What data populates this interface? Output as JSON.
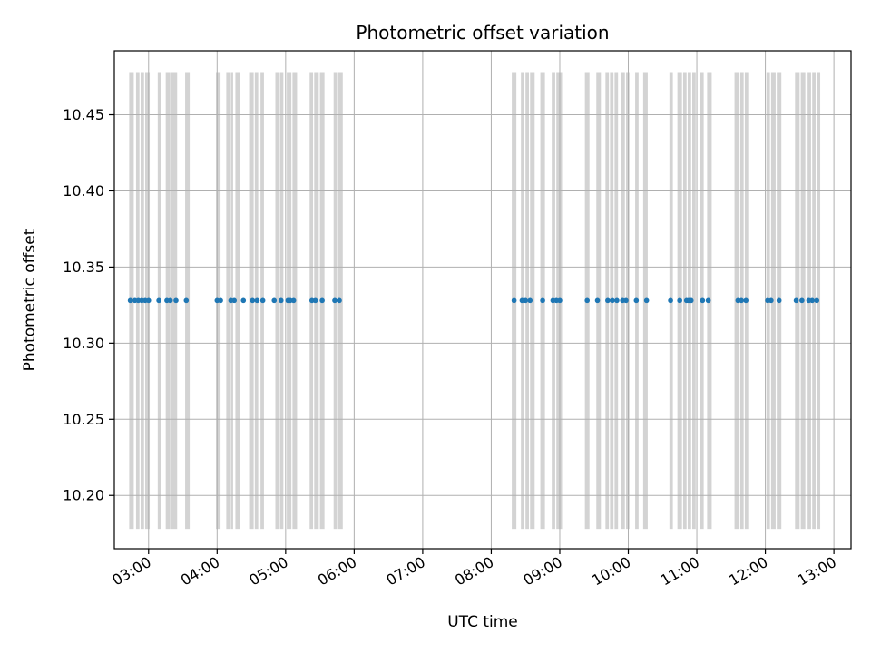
{
  "chart_data": {
    "type": "scatter",
    "title": "Photometric offset variation",
    "xlabel": "UTC time",
    "ylabel": "Photometric offset",
    "grid": true,
    "xlim": [
      "02:30",
      "13:15"
    ],
    "ylim": [
      10.165,
      10.492
    ],
    "x_ticks": [
      "03:00",
      "04:00",
      "05:00",
      "06:00",
      "07:00",
      "08:00",
      "09:00",
      "10:00",
      "11:00",
      "12:00",
      "13:00"
    ],
    "y_ticks": [
      10.2,
      10.25,
      10.3,
      10.35,
      10.4,
      10.45
    ],
    "y_tick_labels": [
      "10.20",
      "10.25",
      "10.30",
      "10.35",
      "10.40",
      "10.45"
    ],
    "band_range": [
      10.178,
      10.478
    ],
    "point_color": "#1f77b4",
    "band_color": "#d3d3d3",
    "points": {
      "y": 10.328,
      "x": [
        "02:44",
        "02:48",
        "02:51",
        "02:54",
        "02:57",
        "03:00",
        "03:09",
        "03:16",
        "03:19",
        "03:24",
        "03:33",
        "04:00",
        "04:03",
        "04:12",
        "04:15",
        "04:23",
        "04:31",
        "04:35",
        "04:40",
        "04:50",
        "04:56",
        "05:02",
        "05:04",
        "05:07",
        "05:23",
        "05:26",
        "05:32",
        "05:43",
        "05:47",
        "08:20",
        "08:27",
        "08:30",
        "08:34",
        "08:45",
        "08:54",
        "08:57",
        "09:00",
        "09:24",
        "09:33",
        "09:42",
        "09:46",
        "09:50",
        "09:55",
        "09:58",
        "10:07",
        "10:16",
        "10:37",
        "10:45",
        "10:51",
        "10:53",
        "10:55",
        "11:05",
        "11:10",
        "11:36",
        "11:39",
        "11:43",
        "12:02",
        "12:05",
        "12:12",
        "12:27",
        "12:32",
        "12:38",
        "12:41",
        "12:45"
      ]
    },
    "bands": [
      [
        "02:43",
        "02:47"
      ],
      [
        "02:49",
        "02:52"
      ],
      [
        "02:53",
        "02:56"
      ],
      [
        "02:57",
        "03:01"
      ],
      [
        "03:08",
        "03:11"
      ],
      [
        "03:15",
        "03:19"
      ],
      [
        "03:20",
        "03:25"
      ],
      [
        "03:32",
        "03:36"
      ],
      [
        "03:59",
        "04:03"
      ],
      [
        "04:08",
        "04:11"
      ],
      [
        "04:12",
        "04:14"
      ],
      [
        "04:16",
        "04:20"
      ],
      [
        "04:28",
        "04:32"
      ],
      [
        "04:33",
        "04:36"
      ],
      [
        "04:38",
        "04:41"
      ],
      [
        "04:51",
        "04:54"
      ],
      [
        "04:55",
        "04:58"
      ],
      [
        "05:01",
        "05:05"
      ],
      [
        "05:06",
        "05:10"
      ],
      [
        "05:21",
        "05:24"
      ],
      [
        "05:25",
        "05:29"
      ],
      [
        "05:30",
        "05:34"
      ],
      [
        "05:42",
        "05:45"
      ],
      [
        "05:46",
        "05:50"
      ],
      [
        "08:18",
        "08:22"
      ],
      [
        "08:26",
        "08:29"
      ],
      [
        "08:30",
        "08:33"
      ],
      [
        "08:34",
        "08:38"
      ],
      [
        "08:43",
        "08:47"
      ],
      [
        "08:53",
        "08:56"
      ],
      [
        "08:57",
        "09:02"
      ],
      [
        "09:22",
        "09:26"
      ],
      [
        "09:32",
        "09:36"
      ],
      [
        "09:40",
        "09:43"
      ],
      [
        "09:44",
        "09:47"
      ],
      [
        "09:48",
        "09:51"
      ],
      [
        "09:54",
        "09:57"
      ],
      [
        "09:58",
        "10:01"
      ],
      [
        "10:06",
        "10:09"
      ],
      [
        "10:13",
        "10:17"
      ],
      [
        "10:36",
        "10:39"
      ],
      [
        "10:43",
        "10:47"
      ],
      [
        "10:48",
        "10:51"
      ],
      [
        "10:52",
        "10:55"
      ],
      [
        "10:56",
        "10:59"
      ],
      [
        "11:03",
        "11:06"
      ],
      [
        "11:09",
        "11:13"
      ],
      [
        "11:33",
        "11:37"
      ],
      [
        "11:38",
        "11:41"
      ],
      [
        "11:42",
        "11:45"
      ],
      [
        "12:01",
        "12:04"
      ],
      [
        "12:05",
        "12:09"
      ],
      [
        "12:10",
        "12:14"
      ],
      [
        "12:26",
        "12:30"
      ],
      [
        "12:31",
        "12:35"
      ],
      [
        "12:37",
        "12:40"
      ],
      [
        "12:41",
        "12:44"
      ],
      [
        "12:45",
        "12:48"
      ]
    ]
  }
}
